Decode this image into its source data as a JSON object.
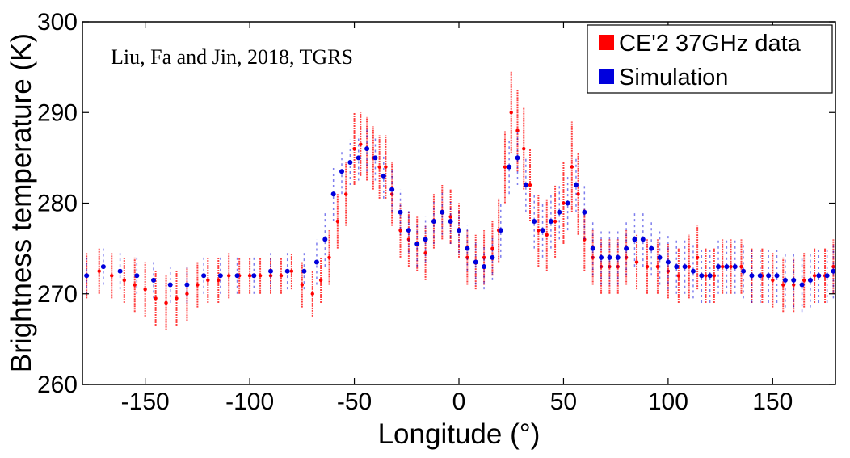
{
  "chart_data": {
    "type": "scatter",
    "title": "",
    "annotation": "Liu, Fa and Jin, 2018, TGRS",
    "xlabel": "Longitude (°)",
    "ylabel": "Brightness temperature (K)",
    "xlim": [
      -180,
      180
    ],
    "ylim": [
      260,
      300
    ],
    "xticks": [
      -150,
      -100,
      -50,
      0,
      50,
      100,
      150
    ],
    "yticks": [
      260,
      270,
      280,
      290,
      300
    ],
    "grid": false,
    "legend_position": "top-right",
    "series": [
      {
        "name": "CE'2 37GHz data",
        "color": "#ff0000",
        "x": [
          -178,
          -172,
          -166,
          -160,
          -155,
          -150,
          -145,
          -140,
          -135,
          -130,
          -125,
          -120,
          -115,
          -110,
          -105,
          -100,
          -95,
          -90,
          -85,
          -80,
          -75,
          -70,
          -66,
          -62,
          -58,
          -54,
          -50,
          -47,
          -44,
          -41,
          -38,
          -35,
          -32,
          -28,
          -24,
          -20,
          -16,
          -12,
          -8,
          -4,
          0,
          4,
          8,
          12,
          16,
          19,
          22,
          25,
          28,
          31,
          34,
          38,
          42,
          46,
          50,
          54,
          57,
          60,
          64,
          68,
          72,
          76,
          80,
          85,
          90,
          95,
          100,
          105,
          110,
          114,
          118,
          122,
          126,
          130,
          135,
          140,
          145,
          150,
          155,
          160,
          165,
          170,
          175,
          179
        ],
        "y": [
          272,
          272.5,
          272,
          271.5,
          271,
          270.5,
          269.5,
          269,
          269.5,
          270,
          271,
          271.5,
          271.5,
          272,
          272,
          272,
          272,
          272,
          272,
          272.5,
          271,
          270,
          271.5,
          274,
          278,
          281,
          286,
          286.5,
          286,
          285,
          284,
          284,
          281,
          277,
          276,
          275.5,
          274.5,
          278,
          279,
          278.5,
          277,
          274,
          273.5,
          274,
          275,
          277,
          284,
          290,
          288,
          286,
          282,
          277,
          276.5,
          278,
          280,
          284,
          281,
          276,
          274,
          273,
          273,
          273,
          274,
          273.5,
          273,
          273,
          272.5,
          272,
          273,
          274,
          272,
          272,
          273,
          273,
          273,
          272,
          272,
          271.5,
          271,
          271,
          271.5,
          272,
          272,
          273
        ],
        "spread": [
          2.5,
          2.5,
          2.5,
          2.5,
          3,
          3,
          3,
          3,
          3,
          3,
          2.5,
          2.5,
          2.5,
          2.5,
          2,
          2,
          2,
          2,
          2,
          2,
          2.5,
          2.5,
          2.5,
          3,
          3,
          3.5,
          4,
          3.5,
          3.5,
          3.5,
          3.5,
          3.5,
          3.5,
          3,
          3,
          3,
          3,
          3,
          3,
          3,
          3,
          3,
          3,
          3,
          3,
          3.5,
          4,
          4.5,
          4.5,
          4.5,
          4,
          4,
          4,
          4,
          4.5,
          5,
          4.5,
          3.5,
          3,
          3,
          3,
          3,
          3,
          3,
          3,
          3,
          3,
          3,
          3.5,
          3.5,
          3,
          3,
          3,
          3,
          3,
          3,
          3,
          3,
          3,
          3,
          3,
          3,
          3,
          3
        ]
      },
      {
        "name": "Simulation",
        "color": "#0000dd",
        "x": [
          -178,
          -170,
          -162,
          -154,
          -146,
          -138,
          -130,
          -122,
          -114,
          -106,
          -98,
          -90,
          -82,
          -74,
          -68,
          -64,
          -60,
          -56,
          -52,
          -48,
          -44,
          -40,
          -36,
          -32,
          -28,
          -24,
          -20,
          -16,
          -12,
          -8,
          -4,
          0,
          4,
          8,
          12,
          16,
          20,
          24,
          28,
          32,
          36,
          40,
          44,
          48,
          52,
          56,
          60,
          64,
          68,
          72,
          76,
          80,
          84,
          88,
          92,
          96,
          100,
          104,
          108,
          112,
          116,
          120,
          124,
          128,
          132,
          136,
          140,
          144,
          148,
          152,
          156,
          160,
          164,
          168,
          172,
          176,
          179
        ],
        "y": [
          272,
          273,
          272.5,
          272,
          271.5,
          271,
          271,
          272,
          272,
          272,
          272,
          272.5,
          272.5,
          272.5,
          273.5,
          276,
          281,
          283.5,
          284.5,
          285,
          286,
          285,
          283,
          281.5,
          279,
          277,
          275.5,
          276,
          278,
          279,
          278,
          277,
          275,
          273.5,
          273,
          274,
          277,
          284,
          285,
          282,
          278,
          277,
          278,
          279,
          280,
          282,
          279,
          275,
          274,
          274,
          274,
          275,
          276,
          276,
          275,
          274,
          273.5,
          273,
          273,
          272.5,
          272,
          272,
          273,
          273,
          273,
          272.5,
          272,
          272,
          272,
          272,
          271.5,
          271.5,
          271,
          271.5,
          272,
          272,
          272.5
        ],
        "spread": [
          2,
          2,
          2,
          2,
          2,
          2,
          2,
          2,
          2,
          2,
          2,
          2,
          2,
          2,
          2.5,
          3,
          3,
          2.5,
          2.5,
          2.5,
          2.5,
          2.5,
          2.5,
          2.5,
          2.5,
          2.5,
          2.5,
          2.5,
          2.5,
          2.5,
          2.5,
          2.5,
          2.5,
          2.5,
          2.5,
          2.5,
          3,
          3,
          3,
          3,
          3,
          3,
          3,
          3,
          3,
          3,
          3,
          3,
          3,
          3,
          3,
          3,
          3,
          3,
          3,
          3,
          3,
          3,
          3,
          3,
          3,
          3,
          3,
          3,
          3,
          3,
          3,
          3,
          3,
          3,
          3,
          3,
          3,
          3,
          3,
          3,
          3
        ]
      }
    ]
  }
}
